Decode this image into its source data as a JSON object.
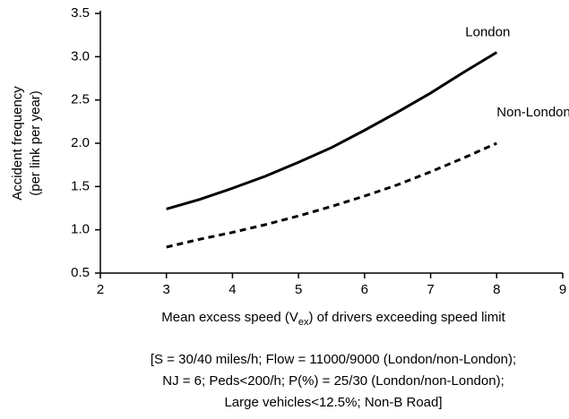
{
  "chart_data": {
    "type": "line",
    "ylabel": [
      "Accident frequency",
      "(per link per year)"
    ],
    "xlabel": {
      "before": "Mean excess speed (V",
      "sub": "ex",
      "after": ") of drivers exceeding speed limit"
    },
    "caption": [
      "[S = 30/40 miles/h; Flow = 11000/9000 (London/non-London);",
      "NJ = 6; Peds<200/h; P(%) = 25/30 (London/non-London);",
      "Large vehicles<12.5%; Non-B Road]"
    ],
    "x": [
      3,
      3.5,
      4,
      4.5,
      5,
      5.5,
      6,
      6.5,
      7,
      7.5,
      8
    ],
    "series": [
      {
        "name": "London",
        "color": "#000000",
        "style": "solid",
        "values": [
          1.24,
          1.35,
          1.48,
          1.62,
          1.78,
          1.95,
          2.15,
          2.36,
          2.58,
          2.82,
          3.05
        ]
      },
      {
        "name": "Non-London",
        "color": "#000000",
        "style": "dashed",
        "values": [
          0.8,
          0.89,
          0.97,
          1.06,
          1.16,
          1.27,
          1.39,
          1.52,
          1.67,
          1.83,
          2.0
        ]
      }
    ],
    "xlim": [
      2,
      9
    ],
    "xticks": [
      2,
      3,
      4,
      5,
      6,
      7,
      8,
      9
    ],
    "ylim": [
      0.5,
      3.5
    ],
    "yticks": [
      0.5,
      {
        "value": 1,
        "label": "1.0"
      },
      1.5,
      {
        "value": 2,
        "label": "2.0"
      },
      2.5,
      {
        "value": 3,
        "label": "3.0"
      },
      3.5
    ]
  }
}
